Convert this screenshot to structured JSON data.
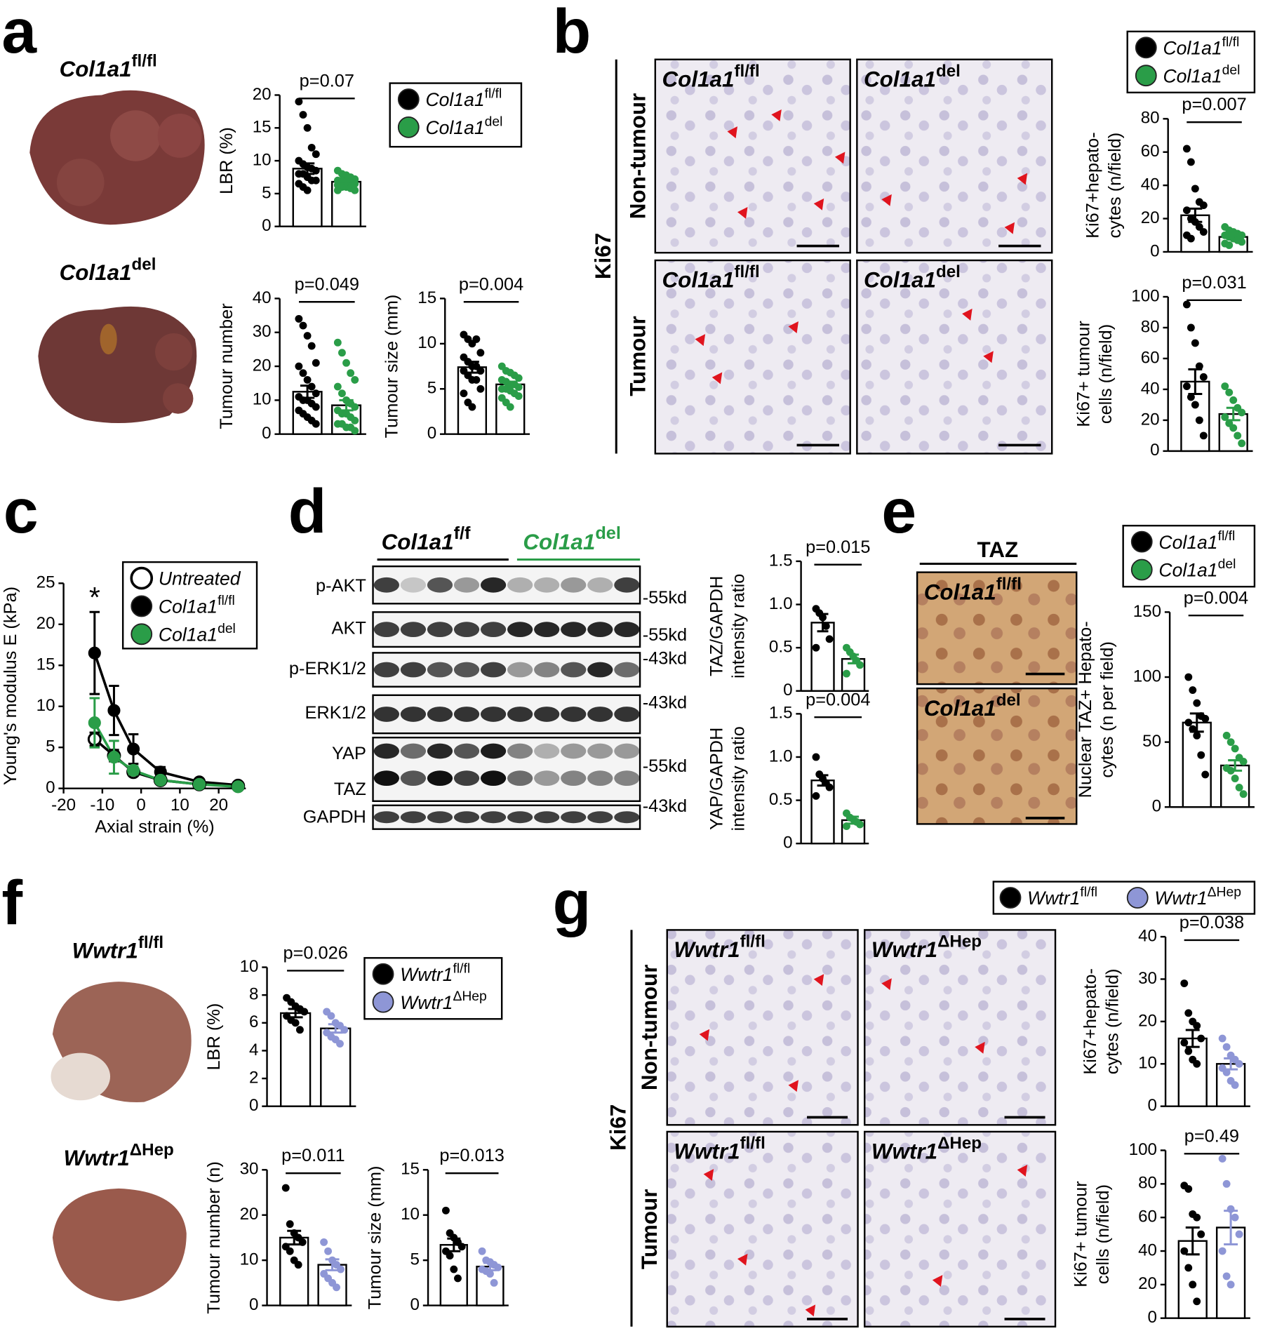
{
  "panel_labels": [
    "a",
    "b",
    "c",
    "d",
    "e",
    "f",
    "g"
  ],
  "a": {
    "photo_labels": [
      {
        "name": "Col1a1",
        "sup": "fl/fl"
      },
      {
        "name": "Col1a1",
        "sup": "del"
      }
    ]
  },
  "b": {
    "stain": "Ki67",
    "row_labels": [
      "Non-tumour",
      "Tumour"
    ],
    "image_labels": [
      {
        "name": "Col1a1",
        "sup": "fl/fl"
      },
      {
        "name": "Col1a1",
        "sup": "del"
      },
      {
        "name": "Col1a1",
        "sup": "fl/fl"
      },
      {
        "name": "Col1a1",
        "sup": "del"
      }
    ]
  },
  "d": {
    "groups": [
      {
        "name": "Col1a1",
        "sup": "f/f",
        "color": "#000000"
      },
      {
        "name": "Col1a1",
        "sup": "del",
        "color": "#2a9d48"
      }
    ],
    "rows": [
      "p-AKT",
      "AKT",
      "p-ERK1/2",
      "ERK1/2",
      "YAP",
      "TAZ",
      "GAPDH"
    ],
    "markers": [
      "-55kd",
      "-55kd",
      "-43kd",
      "-43kd",
      "-55kd",
      "-43kd"
    ]
  },
  "e": {
    "title": "TAZ",
    "image_labels": [
      {
        "name": "Col1a1",
        "sup": "fl/fl"
      },
      {
        "name": "Col1a1",
        "sup": "del"
      }
    ]
  },
  "f": {
    "photo_labels": [
      {
        "name": "Wwtr1",
        "sup": "fl/fl"
      },
      {
        "name": "Wwtr1",
        "sup": "ΔHep"
      }
    ]
  },
  "g": {
    "stain": "Ki67",
    "row_labels": [
      "Non-tumour",
      "Tumour"
    ],
    "image_labels": [
      {
        "name": "Wwtr1",
        "sup": "fl/fl"
      },
      {
        "name": "Wwtr1",
        "sup": "ΔHep"
      },
      {
        "name": "Wwtr1",
        "sup": "fl/fl"
      },
      {
        "name": "Wwtr1",
        "sup": "ΔHep"
      }
    ]
  },
  "legends": {
    "a": [
      {
        "name": "Col1a1",
        "sup": "fl/fl",
        "color": "#000000"
      },
      {
        "name": "Col1a1",
        "sup": "del",
        "color": "#2a9d48"
      }
    ],
    "b": [
      {
        "name": "Col1a1",
        "sup": "fl/fl",
        "color": "#000000"
      },
      {
        "name": "Col1a1",
        "sup": "del",
        "color": "#2a9d48"
      }
    ],
    "e": [
      {
        "name": "Col1a1",
        "sup": "fl/fl",
        "color": "#000000"
      },
      {
        "name": "Col1a1",
        "sup": "del",
        "color": "#2a9d48"
      }
    ],
    "f": [
      {
        "name": "Wwtr1",
        "sup": "fl/fl",
        "color": "#000000"
      },
      {
        "name": "Wwtr1",
        "sup": "ΔHep",
        "color": "#8e96d6"
      }
    ],
    "g": [
      {
        "name": "Wwtr1",
        "sup": "fl/fl",
        "color": "#000000"
      },
      {
        "name": "Wwtr1",
        "sup": "ΔHep",
        "color": "#8e96d6"
      }
    ]
  },
  "chart_data": [
    {
      "type": "bar",
      "ylabel": [
        "LBR (%)"
      ],
      "ylim": [
        0,
        20
      ],
      "yticks": [
        0,
        5,
        10,
        15,
        20
      ],
      "annotation": "p=0.07",
      "series": [
        {
          "color": "#000000",
          "values": [
            8.8
          ],
          "errors": [
            0.8
          ],
          "points": [
            19,
            17,
            15,
            12,
            11,
            10,
            9.5,
            9,
            8.8,
            8.5,
            8,
            8,
            7.5,
            7,
            7,
            6.5,
            6,
            5.5
          ]
        },
        {
          "color": "#2a9d48",
          "values": [
            6.8
          ],
          "errors": [
            0.3
          ],
          "points": [
            8.5,
            8,
            7.8,
            7.5,
            7.2,
            7,
            7,
            6.8,
            6.6,
            6.5,
            6.3,
            6,
            6,
            5.8,
            5.5,
            5.5,
            7,
            6.8
          ]
        }
      ]
    },
    {
      "type": "bar",
      "ylabel": [
        "Tumour number"
      ],
      "ylim": [
        0,
        40
      ],
      "yticks": [
        0,
        10,
        20,
        30,
        40
      ],
      "annotation": "p=0.049",
      "series": [
        {
          "color": "#000000",
          "values": [
            12.5
          ],
          "errors": [
            1.8
          ],
          "points": [
            34,
            32,
            29,
            26,
            21,
            20,
            18,
            16,
            14,
            12,
            11,
            10,
            10,
            9,
            8,
            7,
            6,
            5,
            4,
            3
          ]
        },
        {
          "color": "#2a9d48",
          "values": [
            8.5
          ],
          "errors": [
            1.5
          ],
          "points": [
            27,
            24,
            21,
            18,
            16,
            14,
            12,
            10,
            9,
            8,
            7,
            6,
            6,
            5,
            4,
            3,
            3,
            2,
            2,
            1
          ]
        }
      ]
    },
    {
      "type": "bar",
      "ylabel": [
        "Tumour size (mm)"
      ],
      "ylim": [
        0,
        15
      ],
      "yticks": [
        0,
        5,
        10,
        15
      ],
      "annotation": "p=0.004",
      "series": [
        {
          "color": "#000000",
          "values": [
            7.4
          ],
          "errors": [
            0.6
          ],
          "points": [
            11,
            10.5,
            10,
            10.5,
            9,
            8.5,
            8,
            7.5,
            7.5,
            7,
            7,
            6.5,
            6,
            6,
            5,
            4.5,
            3.5,
            3
          ]
        },
        {
          "color": "#2a9d48",
          "values": [
            5.5
          ],
          "errors": [
            0.3
          ],
          "points": [
            7.5,
            7,
            6.8,
            6.5,
            6.2,
            6,
            5.8,
            5.5,
            5.5,
            5.2,
            5,
            5,
            4.8,
            4.5,
            4.2,
            4,
            3.5,
            3
          ]
        }
      ]
    },
    {
      "type": "bar",
      "ylabel": [
        "Ki67+hepato-",
        "cytes (n/field)"
      ],
      "ylim": [
        0,
        80
      ],
      "yticks": [
        0,
        20,
        40,
        60,
        80
      ],
      "annotation": "p=0.007",
      "series": [
        {
          "color": "#000000",
          "values": [
            22
          ],
          "errors": [
            4
          ],
          "points": [
            62,
            54,
            38,
            30,
            28,
            25,
            20,
            18,
            15,
            12,
            10,
            8
          ]
        },
        {
          "color": "#2a9d48",
          "values": [
            9
          ],
          "errors": [
            1.2
          ],
          "points": [
            15,
            13,
            12,
            11,
            10,
            10,
            9,
            8,
            7,
            6,
            5,
            4
          ]
        }
      ]
    },
    {
      "type": "bar",
      "ylabel": [
        "Ki67+ tumour",
        "cells (n/field)"
      ],
      "ylim": [
        0,
        100
      ],
      "yticks": [
        0,
        20,
        40,
        60,
        80,
        100
      ],
      "annotation": "p=0.031",
      "series": [
        {
          "color": "#000000",
          "values": [
            45
          ],
          "errors": [
            8
          ],
          "points": [
            95,
            80,
            70,
            55,
            48,
            42,
            35,
            30,
            20,
            10
          ]
        },
        {
          "color": "#2a9d48",
          "values": [
            24
          ],
          "errors": [
            4
          ],
          "points": [
            42,
            38,
            33,
            28,
            25,
            22,
            18,
            15,
            10,
            5
          ]
        }
      ]
    },
    {
      "type": "line",
      "xlabel": "Axial strain (%)",
      "ylabel": [
        "Young's modulus E (kPa)"
      ],
      "x": [
        -12,
        -7,
        -2,
        5,
        15,
        25
      ],
      "xlim": [
        -20,
        27
      ],
      "xticks": [
        -20,
        -10,
        0,
        10,
        20
      ],
      "ylim": [
        0,
        25
      ],
      "yticks": [
        0,
        5,
        10,
        15,
        20,
        25
      ],
      "annotation": "*",
      "legend": "upper right",
      "series": [
        {
          "name": "Untreated",
          "color": "#000000",
          "marker": "open",
          "values": [
            6,
            4,
            2,
            1,
            0.5,
            0.3
          ],
          "errors": [
            0.8,
            0.7,
            0.4,
            0.3,
            0.2,
            0.1
          ]
        },
        {
          "name": "Col1a1",
          "name_sup": "fl/fl",
          "color": "#000000",
          "marker": "filled",
          "values": [
            16.5,
            9.5,
            4.8,
            2,
            0.8,
            0.4
          ],
          "errors": [
            5,
            3,
            1.8,
            0.6,
            0.3,
            0.1
          ]
        },
        {
          "name": "Col1a1",
          "name_sup": "del",
          "color": "#2a9d48",
          "marker": "filled",
          "values": [
            8,
            3.8,
            2.2,
            1,
            0.5,
            0.2
          ],
          "errors": [
            3,
            2,
            0.5,
            0.3,
            0.2,
            0.1
          ]
        }
      ]
    },
    {
      "type": "bar",
      "ylabel": [
        "TAZ/GAPDH",
        "intensity ratio"
      ],
      "ylim": [
        0,
        1.5
      ],
      "yticks": [
        0,
        0.5,
        {
          "value": 1,
          "label": "1.0"
        },
        1.5
      ],
      "annotation": "p=0.015",
      "series": [
        {
          "color": "#000000",
          "values": [
            0.79
          ],
          "errors": [
            0.1
          ],
          "points": [
            0.95,
            0.9,
            0.85,
            0.75,
            0.6,
            0.5
          ]
        },
        {
          "color": "#2a9d48",
          "values": [
            0.37
          ],
          "errors": [
            0.05
          ],
          "points": [
            0.5,
            0.45,
            0.4,
            0.35,
            0.3,
            0.2
          ]
        }
      ]
    },
    {
      "type": "bar",
      "ylabel": [
        "YAP/GAPDH",
        "intensity ratio"
      ],
      "ylim": [
        0,
        1.5
      ],
      "yticks": [
        0,
        0.5,
        {
          "value": 1,
          "label": "1.0"
        },
        1.5
      ],
      "annotation": "p=0.004",
      "series": [
        {
          "color": "#000000",
          "values": [
            0.73
          ],
          "errors": [
            0.06
          ],
          "points": [
            1.0,
            0.8,
            0.75,
            0.7,
            0.65,
            0.55
          ]
        },
        {
          "color": "#2a9d48",
          "values": [
            0.27
          ],
          "errors": [
            0.04
          ],
          "points": [
            0.35,
            0.3,
            0.28,
            0.25,
            0.22,
            0.2
          ]
        }
      ]
    },
    {
      "type": "bar",
      "ylabel": [
        "Nuclear TAZ+ Hepato-",
        "cytes (n per field)"
      ],
      "ylim": [
        0,
        150
      ],
      "yticks": [
        0,
        50,
        100,
        150
      ],
      "annotation": "p=0.004",
      "series": [
        {
          "color": "#000000",
          "values": [
            65
          ],
          "errors": [
            7
          ],
          "points": [
            100,
            90,
            80,
            70,
            68,
            65,
            60,
            55,
            40,
            25
          ]
        },
        {
          "color": "#2a9d48",
          "values": [
            32
          ],
          "errors": [
            4
          ],
          "points": [
            55,
            50,
            45,
            38,
            35,
            30,
            28,
            22,
            15,
            10
          ]
        }
      ]
    },
    {
      "type": "bar",
      "ylabel": [
        "LBR (%)"
      ],
      "ylim": [
        0,
        10
      ],
      "yticks": [
        0,
        2,
        4,
        6,
        8,
        10
      ],
      "annotation": "p=0.026",
      "series": [
        {
          "color": "#000000",
          "values": [
            6.7
          ],
          "errors": [
            0.3
          ],
          "points": [
            7.8,
            7.5,
            7.2,
            7,
            6.8,
            6.5,
            6.2,
            6,
            5.5
          ]
        },
        {
          "color": "#8e96d6",
          "values": [
            5.6
          ],
          "errors": [
            0.3
          ],
          "points": [
            6.8,
            6.5,
            6,
            5.8,
            5.5,
            5.3,
            5,
            4.8,
            4.5
          ]
        }
      ]
    },
    {
      "type": "bar",
      "ylabel": [
        "Tumour number (n)"
      ],
      "ylim": [
        0,
        30
      ],
      "yticks": [
        0,
        10,
        20,
        30
      ],
      "annotation": "p=0.011",
      "series": [
        {
          "color": "#000000",
          "values": [
            15
          ],
          "errors": [
            1.5
          ],
          "points": [
            26,
            18,
            16,
            15,
            14,
            13,
            12,
            10,
            9
          ]
        },
        {
          "color": "#8e96d6",
          "values": [
            9
          ],
          "errors": [
            1.2
          ],
          "points": [
            14,
            12,
            10,
            9,
            8,
            7,
            6,
            5,
            4
          ]
        }
      ]
    },
    {
      "type": "bar",
      "ylabel": [
        "Tumour size (mm)"
      ],
      "ylim": [
        0,
        15
      ],
      "yticks": [
        0,
        5,
        10,
        15
      ],
      "annotation": "p=0.013",
      "series": [
        {
          "color": "#000000",
          "values": [
            6.7
          ],
          "errors": [
            0.7
          ],
          "points": [
            10.5,
            8,
            7.5,
            7,
            6.5,
            6,
            5.5,
            4,
            3
          ]
        },
        {
          "color": "#8e96d6",
          "values": [
            4.3
          ],
          "errors": [
            0.4
          ],
          "points": [
            6,
            5,
            4.8,
            4.5,
            4.2,
            4,
            3.8,
            3.5,
            2.5
          ]
        }
      ]
    },
    {
      "type": "bar",
      "ylabel": [
        "Ki67+hepato-",
        "cytes (n/field)"
      ],
      "ylim": [
        0,
        40
      ],
      "yticks": [
        0,
        10,
        20,
        30,
        40
      ],
      "annotation": "p=0.038",
      "series": [
        {
          "color": "#000000",
          "values": [
            16
          ],
          "errors": [
            2
          ],
          "points": [
            29,
            22,
            20,
            19,
            16,
            15,
            13,
            11,
            10
          ]
        },
        {
          "color": "#8e96d6",
          "values": [
            10
          ],
          "errors": [
            1.3
          ],
          "points": [
            16,
            14,
            12,
            11,
            10,
            9,
            8,
            6,
            5
          ]
        }
      ]
    },
    {
      "type": "bar",
      "ylabel": [
        "Ki67+ tumour",
        "cells (n/field)"
      ],
      "ylim": [
        0,
        100
      ],
      "yticks": [
        0,
        20,
        40,
        60,
        80,
        100
      ],
      "annotation": "p=0.49",
      "series": [
        {
          "color": "#000000",
          "values": [
            46
          ],
          "errors": [
            8
          ],
          "points": [
            79,
            77,
            62,
            60,
            50,
            40,
            30,
            20,
            10
          ]
        },
        {
          "color": "#8e96d6",
          "values": [
            54
          ],
          "errors": [
            10
          ],
          "points": [
            95,
            80,
            65,
            60,
            50,
            40,
            25,
            20
          ]
        }
      ]
    }
  ]
}
